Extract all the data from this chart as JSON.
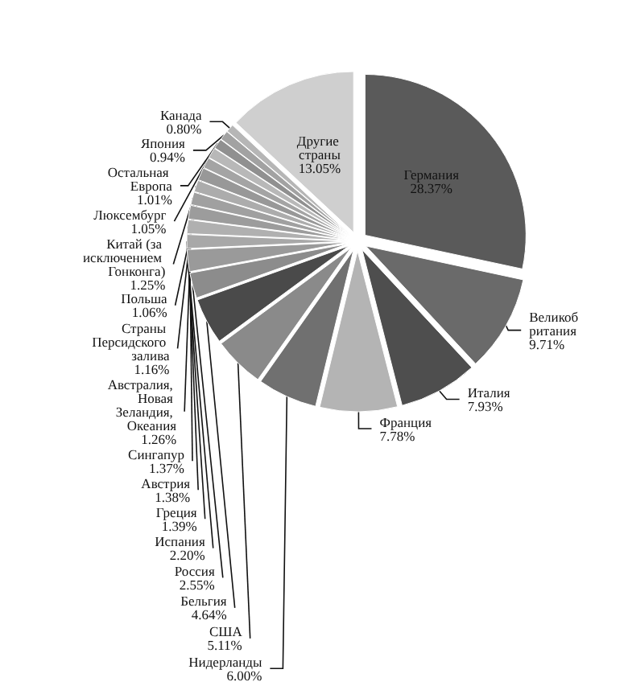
{
  "chart_data": {
    "type": "pie",
    "categories": [
      "Германия",
      "Великобритания",
      "Италия",
      "Франция",
      "Нидерланды",
      "США",
      "Бельгия",
      "Россия",
      "Испания",
      "Греция",
      "Австрия",
      "Сингапур",
      "Австралия, Новая Зеландия, Океания",
      "Страны Персидского залива",
      "Китай (за исключением Гонконга)",
      "Польша",
      "Люксембург",
      "Остальная Европа",
      "Япония",
      "Канада",
      "Другие страны"
    ],
    "values": [
      28.37,
      9.71,
      7.93,
      7.78,
      6.0,
      5.11,
      4.64,
      2.55,
      2.2,
      1.39,
      1.38,
      1.37,
      1.26,
      1.16,
      1.25,
      1.06,
      1.05,
      1.01,
      0.94,
      0.8,
      13.05
    ],
    "value_labels": [
      "28.37%",
      "9.71%",
      "7.93%",
      "7.78%",
      "6.00%",
      "5.11%",
      "4.64%",
      "2.55%",
      "2.20%",
      "1.39%",
      "1.38%",
      "1.37%",
      "1.26%",
      "1.16%",
      "1.25%",
      "1.06%",
      "1.05%",
      "1.01%",
      "0.94%",
      "0.80%",
      "13.05%"
    ],
    "colors": [
      "#5a5a5a",
      "#6a6a6a",
      "#4e4e4e",
      "#b4b4b4",
      "#707070",
      "#8a8a8a",
      "#4a4a4a",
      "#8c8c8c",
      "#9a9a9a",
      "#a8a8a8",
      "#b0b0b0",
      "#9c9c9c",
      "#a0a0a0",
      "#acacac",
      "#989898",
      "#a4a4a4",
      "#b8b8b8",
      "#909090",
      "#a2a2a2",
      "#b6b6b6",
      "#cfcfcf"
    ]
  }
}
